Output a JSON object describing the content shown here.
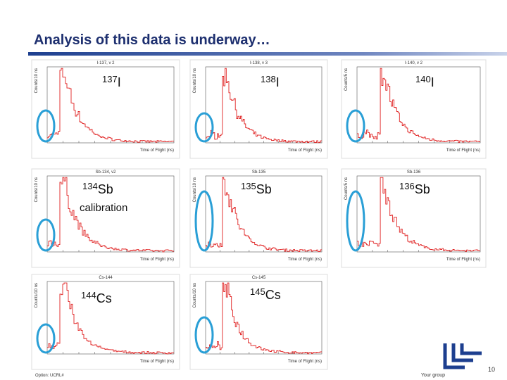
{
  "header": {
    "title": "Analysis of this data is underway…"
  },
  "plots": [
    {
      "caption": "I-137, v 2",
      "mass": "137",
      "element": "I",
      "xlabel": "Time of Flight (ns)",
      "ylabel": "Counts/10 ns"
    },
    {
      "caption": "I-138, v 3",
      "mass": "138",
      "element": "I",
      "xlabel": "Time of Flight (ns)",
      "ylabel": "Counts/10 ns"
    },
    {
      "caption": "I-140, v 2",
      "mass": "140",
      "element": "I",
      "xlabel": "Time of Flight (ns)",
      "ylabel": "Counts/5 ns"
    },
    {
      "caption": "Sb-134, v2",
      "mass": "134",
      "element": "Sb",
      "note": "calibration",
      "xlabel": "Time of Flight (ns)",
      "ylabel": "Counts/10 ns"
    },
    {
      "caption": "Sb-135",
      "mass": "135",
      "element": "Sb",
      "xlabel": "Time of Flight (ns)",
      "ylabel": "Counts/10 ns"
    },
    {
      "caption": "Sb-136",
      "mass": "136",
      "element": "Sb",
      "xlabel": "Time of Flight (ns)",
      "ylabel": "Counts/5 ns"
    },
    {
      "caption": "Cs-144",
      "mass": "144",
      "element": "Cs",
      "xlabel": "Time of Flight (ns)",
      "ylabel": "Counts/10 ns"
    },
    {
      "caption": "Cs-145",
      "mass": "145",
      "element": "Cs",
      "xlabel": "Time of Flight (ns)",
      "ylabel": "Counts/10 ns"
    }
  ],
  "footer": {
    "left": "Option: UCRL#",
    "group": "Your group",
    "page": "10"
  }
}
